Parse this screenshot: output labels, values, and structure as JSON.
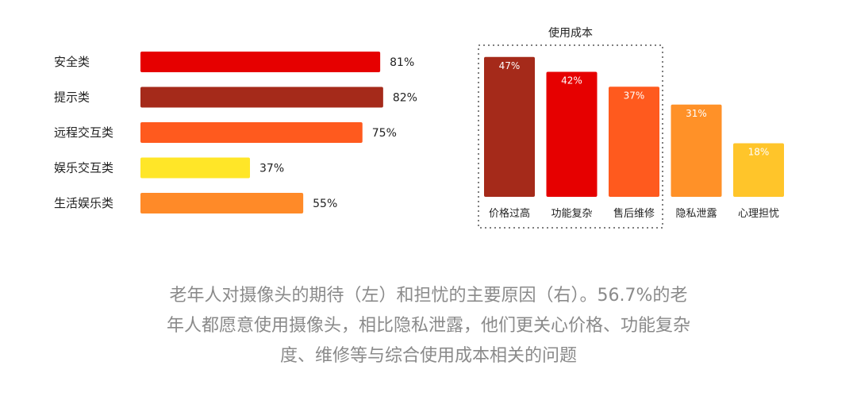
{
  "chart_data": [
    {
      "type": "bar",
      "orientation": "horizontal",
      "categories": [
        "安全类",
        "提示类",
        "远程交互类",
        "娱乐交互类",
        "生活娱乐类"
      ],
      "values": [
        81,
        82,
        75,
        37,
        55
      ],
      "value_labels": [
        "81%",
        "82%",
        "75%",
        "37%",
        "55%"
      ],
      "colors": [
        "#e60000",
        "#a52a1a",
        "#ff5a1e",
        "#ffe628",
        "#ff8a28"
      ],
      "unit": "%",
      "xlim": [
        0,
        100
      ],
      "grid": false
    },
    {
      "type": "bar",
      "orientation": "vertical",
      "title": "使用成本",
      "categories": [
        "价格过高",
        "功能复杂",
        "售后维修",
        "隐私泄露",
        "心理担忧"
      ],
      "values": [
        47,
        42,
        37,
        31,
        18
      ],
      "value_labels": [
        "47%",
        "42%",
        "37%",
        "31%",
        "18%"
      ],
      "colors": [
        "#a52a1a",
        "#e60000",
        "#ff5a1e",
        "#ff9128",
        "#ffc52a"
      ],
      "highlight_group": [
        "价格过高",
        "功能复杂",
        "售后维修"
      ],
      "unit": "%",
      "ylim": [
        0,
        50
      ],
      "grid": false
    }
  ],
  "caption": {
    "line1": "老年人对摄像头的期待（左）和担忧的主要原因（右）。56.7%的老",
    "line2": "年人都愿意使用摄像头，相比隐私泄露，他们更关心价格、功能复杂",
    "line3": "度、维修等与综合使用成本相关的问题"
  }
}
